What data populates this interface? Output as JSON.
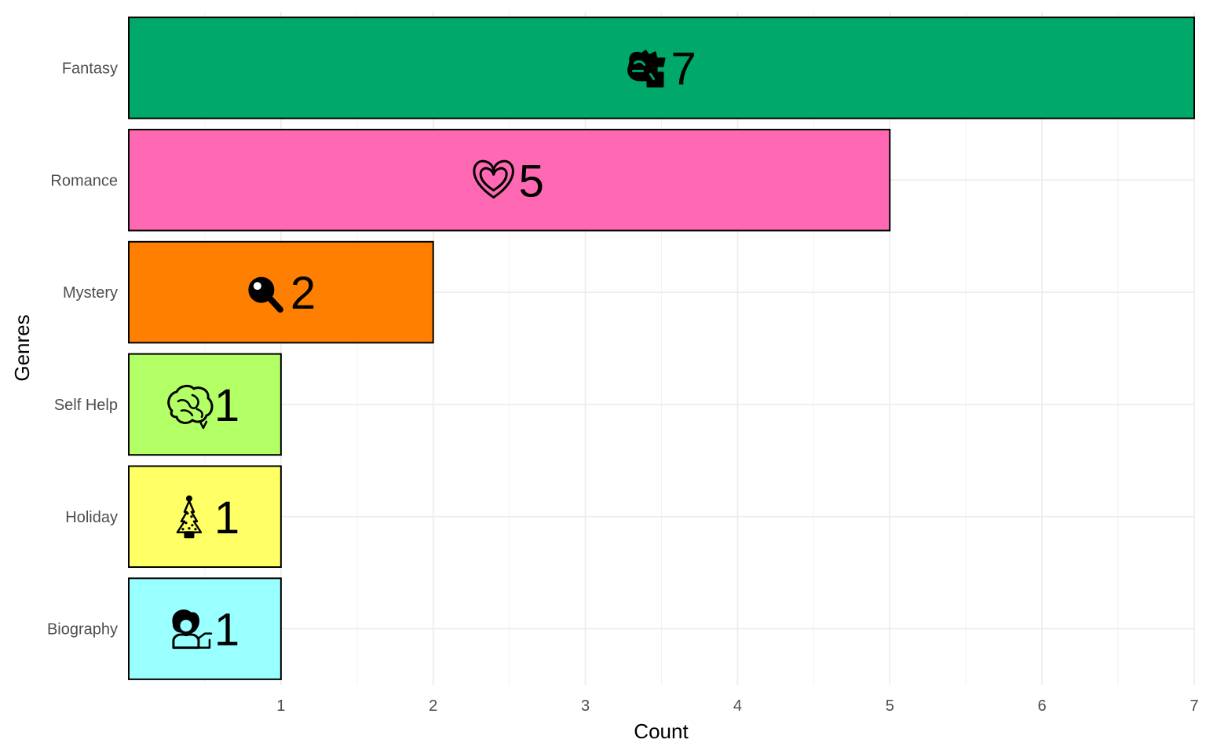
{
  "chart_data": {
    "type": "bar",
    "orientation": "horizontal",
    "xlabel": "Count",
    "ylabel": "Genres",
    "xlim": [
      0,
      7
    ],
    "x_ticks": [
      1,
      2,
      3,
      4,
      5,
      6,
      7
    ],
    "grid": true,
    "categories": [
      "Fantasy",
      "Romance",
      "Mystery",
      "Self Help",
      "Holiday",
      "Biography"
    ],
    "values": [
      7,
      5,
      2,
      1,
      1,
      1
    ],
    "bar_colors": [
      "#00A869",
      "#FF69B4",
      "#FF7F00",
      "#B3FF66",
      "#FFFF66",
      "#99FFFF"
    ],
    "icons": [
      "dragon-icon",
      "heart-icon",
      "magnifying-glass-icon",
      "brain-icon",
      "christmas-tree-icon",
      "person-icon"
    ],
    "bar_labels": [
      "7",
      "5",
      "2",
      "1",
      "1",
      "1"
    ]
  }
}
